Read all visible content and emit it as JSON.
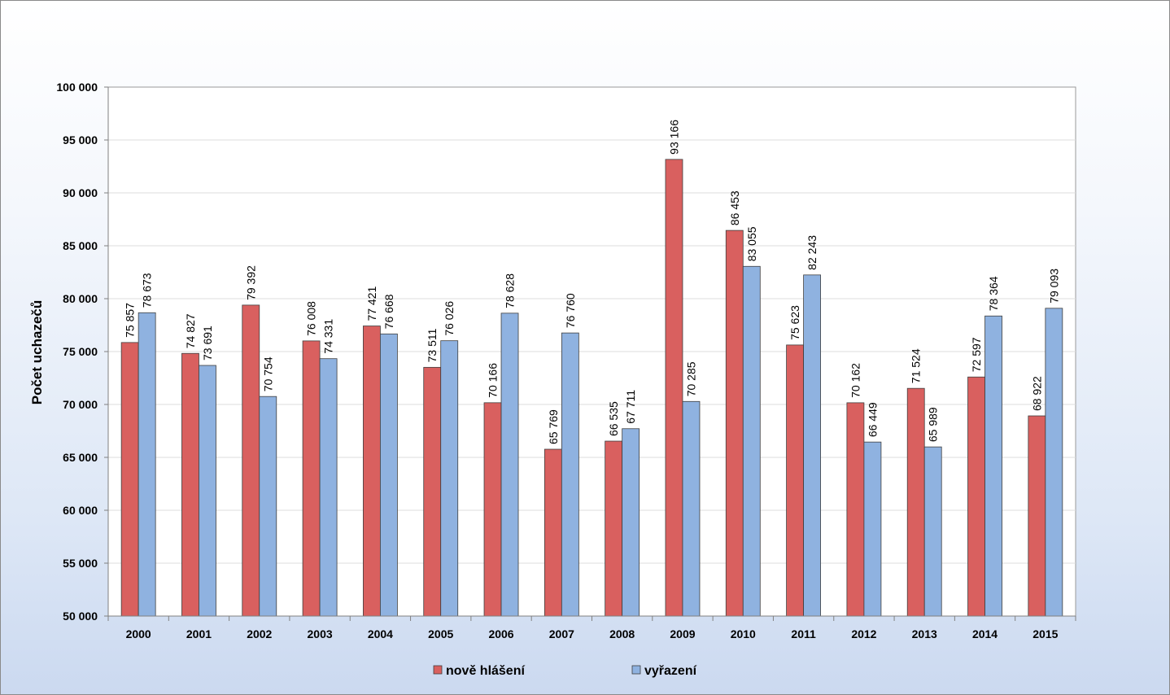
{
  "chart_data": {
    "type": "bar",
    "title": "",
    "xlabel": "",
    "ylabel": "Počet  uchazečů",
    "ylim": [
      50000,
      100000
    ],
    "ytick_step": 5000,
    "yticks": [
      "50 000",
      "55 000",
      "60 000",
      "65 000",
      "70 000",
      "75 000",
      "80 000",
      "85 000",
      "90 000",
      "95 000",
      "100 000"
    ],
    "grid": true,
    "legend_position": "bottom",
    "categories": [
      "2000",
      "2001",
      "2002",
      "2003",
      "2004",
      "2005",
      "2006",
      "2007",
      "2008",
      "2009",
      "2010",
      "2011",
      "2012",
      "2013",
      "2014",
      "2015"
    ],
    "series": [
      {
        "name": "nově hlášení",
        "color": "#d9605f",
        "values": [
          75857,
          74827,
          79392,
          76008,
          77421,
          73511,
          70166,
          65769,
          66535,
          93166,
          86453,
          75623,
          70162,
          71524,
          72597,
          68922
        ],
        "labels": [
          "75 857",
          "74 827",
          "79 392",
          "76 008",
          "77 421",
          "73 511",
          "70 166",
          "65 769",
          "66 535",
          "93 166",
          "86 453",
          "75 623",
          "70 162",
          "71 524",
          "72 597",
          "68 922"
        ]
      },
      {
        "name": "vyřazení",
        "color": "#8fb2e0",
        "values": [
          78673,
          73691,
          70754,
          74331,
          76668,
          76026,
          78628,
          76760,
          67711,
          70285,
          83055,
          82243,
          66449,
          65989,
          78364,
          79093
        ],
        "labels": [
          "78 673",
          "73 691",
          "70 754",
          "74 331",
          "76 668",
          "76 026",
          "78 628",
          "76 760",
          "67 711",
          "70 285",
          "83 055",
          "82 243",
          "66 449",
          "65 989",
          "78 364",
          "79 093"
        ]
      }
    ]
  }
}
